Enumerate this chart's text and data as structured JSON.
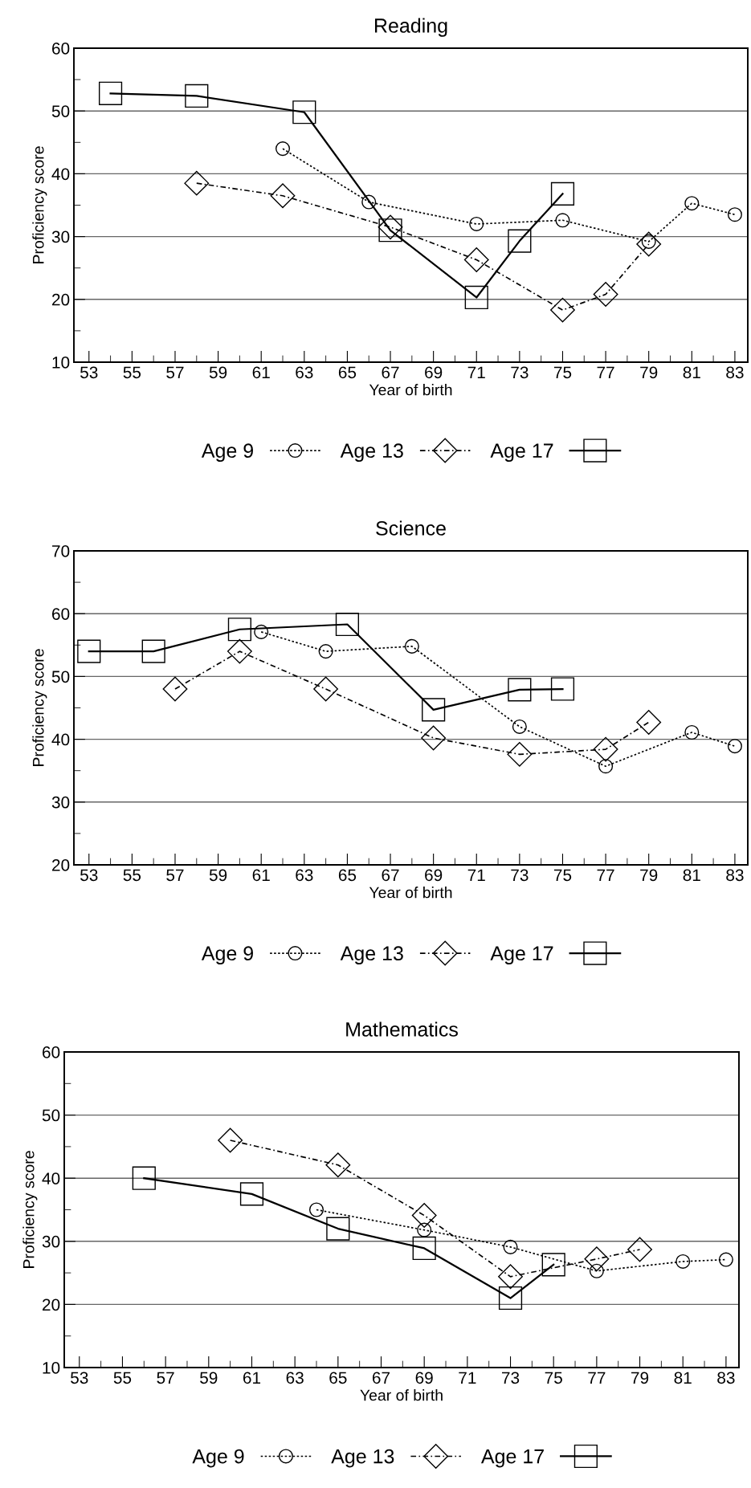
{
  "chart_data": [
    {
      "type": "line",
      "title": "Reading",
      "xlabel": "Year of birth",
      "ylabel": "Proficiency score",
      "xlim": [
        52.3,
        83.6
      ],
      "ylim": [
        10,
        60
      ],
      "xticks": [
        53,
        55,
        57,
        59,
        61,
        63,
        65,
        67,
        69,
        71,
        73,
        75,
        77,
        79,
        81,
        83
      ],
      "yticks": [
        10,
        20,
        30,
        40,
        50,
        60
      ],
      "grid": "y",
      "legend": "bottom",
      "series": [
        {
          "name": "Age 9",
          "color": "#000000",
          "marker": "circle",
          "line_style": "dotted",
          "x": [
            62,
            66,
            71,
            75,
            79,
            81,
            83
          ],
          "values": [
            44,
            35.5,
            32,
            32.6,
            29.2,
            35.3,
            33.5
          ]
        },
        {
          "name": "Age 13",
          "color": "#000000",
          "marker": "diamond",
          "line_style": "dashed",
          "x": [
            58,
            62,
            67,
            71,
            75,
            77,
            79
          ],
          "values": [
            38.5,
            36.5,
            31.5,
            26.3,
            18.3,
            20.8,
            28.8
          ]
        },
        {
          "name": "Age 17",
          "color": "#000000",
          "marker": "square",
          "line_style": "solid",
          "x": [
            54,
            58,
            63,
            67,
            71,
            73,
            75
          ],
          "values": [
            52.8,
            52.4,
            49.8,
            31,
            20.3,
            29.3,
            36.8
          ]
        }
      ]
    },
    {
      "type": "line",
      "title": "Science",
      "xlabel": "Year of birth",
      "ylabel": "Proficiency score",
      "xlim": [
        52.3,
        83.6
      ],
      "ylim": [
        20,
        70
      ],
      "xticks": [
        53,
        55,
        57,
        59,
        61,
        63,
        65,
        67,
        69,
        71,
        73,
        75,
        77,
        79,
        81,
        83
      ],
      "yticks": [
        20,
        30,
        40,
        50,
        60,
        70
      ],
      "grid": "y",
      "legend": "bottom",
      "series": [
        {
          "name": "Age 9",
          "color": "#000000",
          "marker": "circle",
          "line_style": "dotted",
          "x": [
            61,
            64,
            68,
            73,
            77,
            81,
            83
          ],
          "values": [
            57.1,
            54,
            54.8,
            42,
            35.7,
            41.1,
            38.9
          ]
        },
        {
          "name": "Age 13",
          "color": "#000000",
          "marker": "diamond",
          "line_style": "dashed",
          "x": [
            57,
            60,
            64,
            69,
            73,
            77,
            79
          ],
          "values": [
            48,
            54,
            48,
            40.2,
            37.6,
            38.4,
            42.7
          ]
        },
        {
          "name": "Age 17",
          "color": "#000000",
          "marker": "square",
          "line_style": "solid",
          "x": [
            53,
            56,
            60,
            65,
            69,
            73,
            75
          ],
          "values": [
            54,
            54,
            57.5,
            58.3,
            44.7,
            47.9,
            48
          ]
        }
      ]
    },
    {
      "type": "line",
      "title": "Mathematics",
      "xlabel": "Year of birth",
      "ylabel": "Proficiency score",
      "xlim": [
        52.3,
        83.6
      ],
      "ylim": [
        10,
        60
      ],
      "xticks": [
        53,
        55,
        57,
        59,
        61,
        63,
        65,
        67,
        69,
        71,
        73,
        75,
        77,
        79,
        81,
        83
      ],
      "yticks": [
        10,
        20,
        30,
        40,
        50,
        60
      ],
      "grid": "y",
      "legend": "bottom",
      "series": [
        {
          "name": "Age 9",
          "color": "#000000",
          "marker": "circle",
          "line_style": "dotted",
          "x": [
            64,
            69,
            73,
            77,
            81,
            83
          ],
          "values": [
            35,
            31.8,
            29.1,
            25.3,
            26.8,
            27.1
          ]
        },
        {
          "name": "Age 13",
          "color": "#000000",
          "marker": "diamond",
          "line_style": "dashed",
          "x": [
            60,
            65,
            69,
            73,
            77,
            79
          ],
          "values": [
            46,
            42.1,
            34.1,
            24.4,
            27.2,
            28.7
          ]
        },
        {
          "name": "Age 17",
          "color": "#000000",
          "marker": "square",
          "line_style": "solid",
          "x": [
            56,
            61,
            65,
            69,
            73,
            75
          ],
          "values": [
            40,
            37.5,
            32,
            28.9,
            21,
            26.3
          ]
        }
      ]
    }
  ]
}
